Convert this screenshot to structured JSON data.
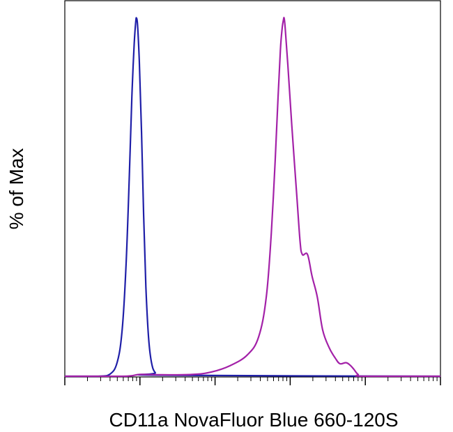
{
  "chart_data": {
    "type": "line",
    "title": "",
    "xlabel": "CD11a NovaFluor Blue 660-120S",
    "ylabel": "% of Max",
    "x_scale": "log",
    "xlim": [
      10,
      1000000
    ],
    "ylim": [
      0,
      100
    ],
    "grid": false,
    "legend": "none",
    "x_tick_labels_visible": false,
    "y_tick_labels_visible": false,
    "series": [
      {
        "color": "#1f1fa8",
        "points": [
          [
            10,
            0
          ],
          [
            28,
            0
          ],
          [
            40,
            0.6
          ],
          [
            50,
            4
          ],
          [
            58,
            13
          ],
          [
            65,
            30
          ],
          [
            72,
            55
          ],
          [
            78,
            78
          ],
          [
            84,
            93
          ],
          [
            88,
            99
          ],
          [
            90,
            100
          ],
          [
            93,
            98
          ],
          [
            98,
            88
          ],
          [
            105,
            68
          ],
          [
            112,
            45
          ],
          [
            120,
            25
          ],
          [
            130,
            11
          ],
          [
            142,
            4
          ],
          [
            160,
            1
          ],
          [
            200,
            0.3
          ],
          [
            1000000,
            0
          ]
        ]
      },
      {
        "color": "#a321a8",
        "points": [
          [
            10,
            0
          ],
          [
            60,
            0
          ],
          [
            100,
            0.5
          ],
          [
            200,
            0.4
          ],
          [
            500,
            0.5
          ],
          [
            900,
            1.2
          ],
          [
            1600,
            3
          ],
          [
            2700,
            6
          ],
          [
            3800,
            11
          ],
          [
            4800,
            22
          ],
          [
            5600,
            40
          ],
          [
            6300,
            60
          ],
          [
            6900,
            78
          ],
          [
            7400,
            91
          ],
          [
            7800,
            97
          ],
          [
            8100,
            99.3
          ],
          [
            8300,
            100
          ],
          [
            8600,
            97
          ],
          [
            9300,
            87
          ],
          [
            10500,
            70
          ],
          [
            12000,
            53
          ],
          [
            13500,
            38
          ],
          [
            14500,
            34
          ],
          [
            17000,
            34
          ],
          [
            19500,
            28
          ],
          [
            23000,
            22
          ],
          [
            27000,
            13
          ],
          [
            33000,
            8
          ],
          [
            40000,
            5
          ],
          [
            46000,
            3.5
          ],
          [
            55000,
            3.8
          ],
          [
            62000,
            3.2
          ],
          [
            70000,
            2
          ],
          [
            80000,
            0.5
          ],
          [
            95000,
            0
          ],
          [
            1000000,
            0
          ]
        ]
      }
    ]
  }
}
